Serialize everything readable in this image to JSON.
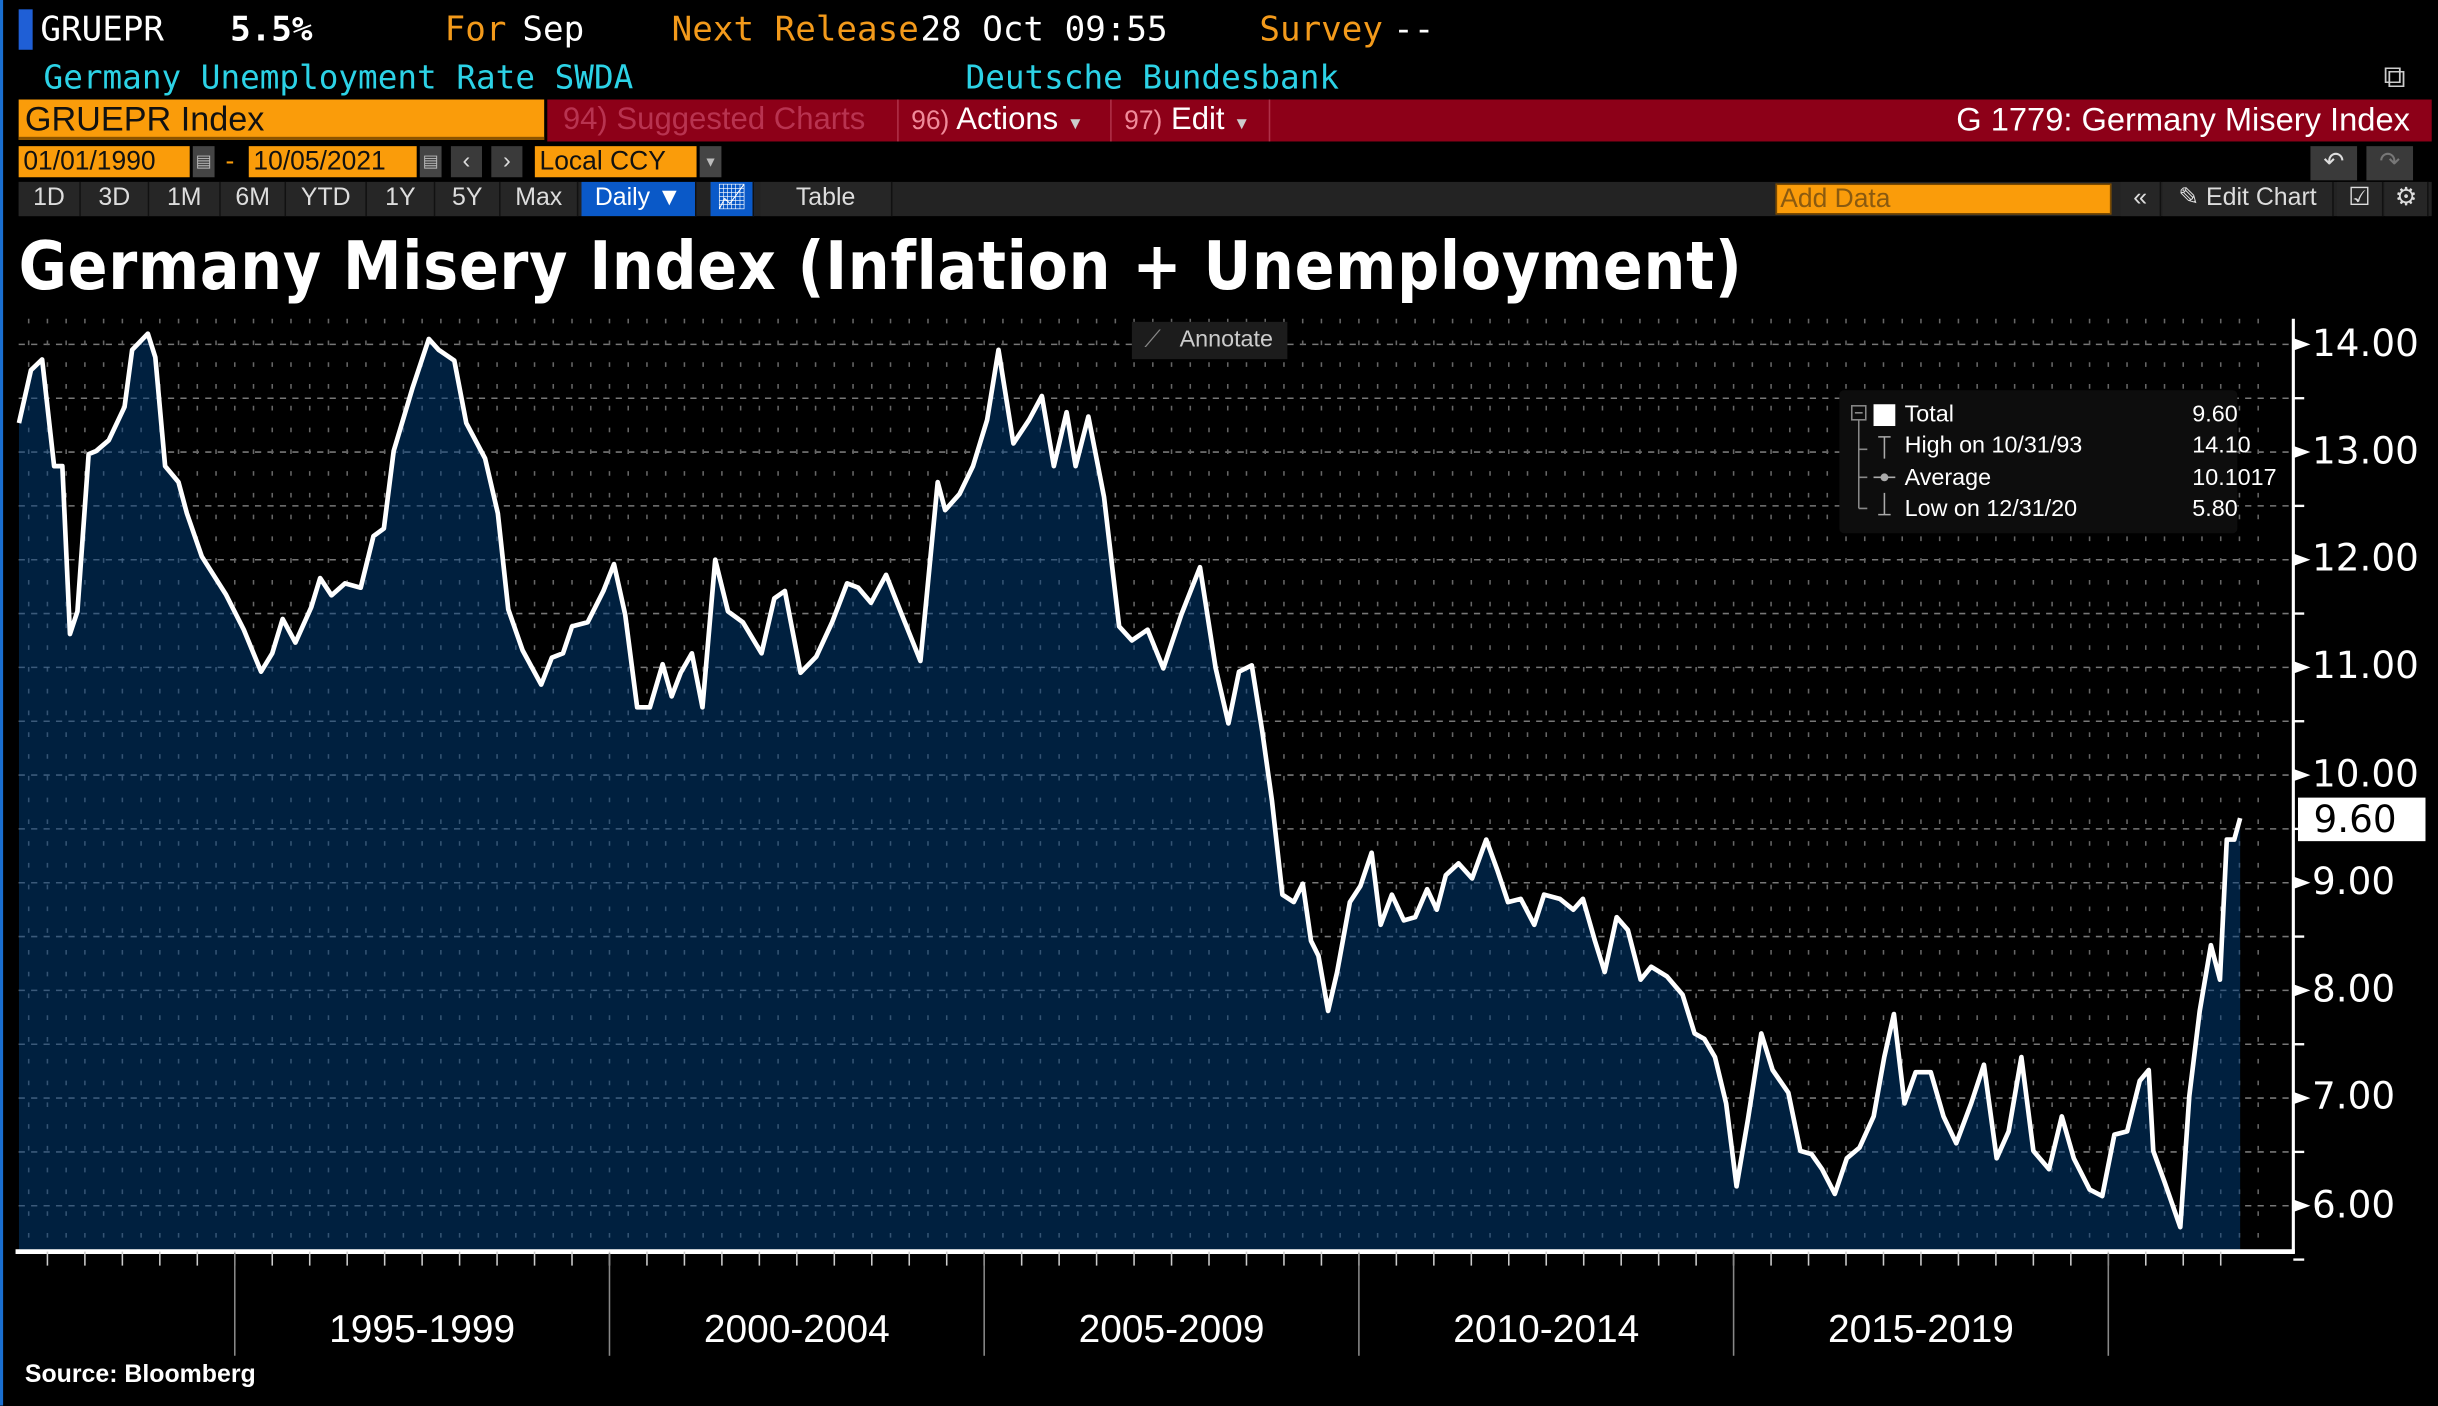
{
  "header": {
    "ticker": "GRUEPR",
    "last_value": "5.5%",
    "for_label": "For",
    "for_period": "Sep",
    "next_release_label": "Next Release",
    "next_release_value": "28 Oct 09:55",
    "survey_label": "Survey",
    "survey_value": "--",
    "description": "Germany Unemployment Rate SWDA",
    "source_name": "Deutsche Bundesbank"
  },
  "command_bar": {
    "security": "GRUEPR Index",
    "suggested_num": "94)",
    "suggested_label": "Suggested Charts",
    "actions_num": "96)",
    "actions_label": "Actions",
    "edit_num": "97)",
    "edit_label": "Edit",
    "chart_id": "G 1779: Germany Misery Index"
  },
  "date_bar": {
    "start_date": "01/01/1990",
    "separator": "-",
    "end_date": "10/05/2021",
    "currency": "Local CCY"
  },
  "toolbar": {
    "ranges": [
      "1D",
      "3D",
      "1M",
      "6M",
      "YTD",
      "1Y",
      "5Y",
      "Max"
    ],
    "frequency": "Daily ▼",
    "table_label": "Table",
    "add_data_placeholder": "Add Data",
    "edit_chart_label": "Edit Chart"
  },
  "annotate_label": "Annotate",
  "legend": {
    "total_label": "Total",
    "total_value": "9.60",
    "high_label": "High on 10/31/93",
    "high_value": "14.10",
    "avg_label": "Average",
    "avg_value": "10.1017",
    "low_label": "Low on 12/31/20",
    "low_value": "5.80"
  },
  "colors": {
    "line": "#ffffff",
    "area": "#00203f",
    "accent_orange": "#fa9c0a",
    "command_red": "#8d0018",
    "cyan_text": "#2cd2e6"
  },
  "footer": {
    "source": "Source: Bloomberg"
  },
  "chart_data": {
    "type": "area",
    "title": "Germany Misery Index (Inflation + Unemployment)",
    "series": [
      {
        "name": "Total",
        "last": 9.6
      }
    ],
    "x_unit": "decimal year",
    "x": [
      1992.12,
      1992.28,
      1992.43,
      1992.59,
      1992.7,
      1992.8,
      1992.9,
      1993.05,
      1993.15,
      1993.32,
      1993.53,
      1993.63,
      1993.84,
      1993.94,
      1994.07,
      1994.25,
      1994.36,
      1994.56,
      1994.88,
      1995.12,
      1995.35,
      1995.5,
      1995.64,
      1995.81,
      1996.02,
      1996.14,
      1996.29,
      1996.47,
      1996.68,
      1996.85,
      1996.99,
      1997.12,
      1997.37,
      1997.59,
      1997.72,
      1997.93,
      1998.09,
      1998.34,
      1998.51,
      1998.65,
      1998.84,
      1999.09,
      1999.23,
      1999.38,
      1999.5,
      1999.71,
      1999.92,
      2000.06,
      2000.21,
      2000.37,
      2000.54,
      2000.71,
      2000.83,
      2000.95,
      2001.1,
      2001.24,
      2001.41,
      2001.58,
      2001.78,
      2002.03,
      2002.2,
      2002.34,
      2002.55,
      2002.76,
      2002.97,
      2003.17,
      2003.32,
      2003.49,
      2003.69,
      2003.9,
      2004.15,
      2004.38,
      2004.48,
      2004.67,
      2004.85,
      2005.04,
      2005.19,
      2005.39,
      2005.6,
      2005.77,
      2005.93,
      2006.1,
      2006.22,
      2006.39,
      2006.6,
      2006.8,
      2006.97,
      2007.18,
      2007.39,
      2007.63,
      2007.88,
      2008.09,
      2008.26,
      2008.4,
      2008.57,
      2008.71,
      2008.84,
      2008.98,
      2009.13,
      2009.25,
      2009.36,
      2009.46,
      2009.59,
      2009.71,
      2009.88,
      2010.02,
      2010.17,
      2010.29,
      2010.44,
      2010.6,
      2010.75,
      2010.91,
      2011.04,
      2011.16,
      2011.33,
      2011.51,
      2011.7,
      2011.85,
      2011.99,
      2012.16,
      2012.34,
      2012.47,
      2012.68,
      2012.86,
      2012.99,
      2013.15,
      2013.28,
      2013.44,
      2013.59,
      2013.76,
      2013.9,
      2014.11,
      2014.32,
      2014.48,
      2014.61,
      2014.75,
      2014.9,
      2015.04,
      2015.19,
      2015.37,
      2015.52,
      2015.73,
      2015.89,
      2016.04,
      2016.18,
      2016.35,
      2016.51,
      2016.68,
      2016.87,
      2017.01,
      2017.14,
      2017.28,
      2017.43,
      2017.63,
      2017.8,
      2017.97,
      2018.17,
      2018.34,
      2018.51,
      2018.67,
      2018.84,
      2019.0,
      2019.21,
      2019.38,
      2019.54,
      2019.75,
      2019.92,
      2020.08,
      2020.25,
      2020.42,
      2020.54,
      2020.6,
      2020.75,
      2020.96,
      2021.08,
      2021.22,
      2021.37,
      2021.49,
      2021.58,
      2021.68,
      2021.76
    ],
    "values": [
      13.27,
      13.76,
      13.86,
      12.87,
      12.87,
      11.31,
      11.52,
      12.98,
      13.01,
      13.11,
      13.42,
      13.95,
      14.1,
      13.88,
      12.87,
      12.72,
      12.43,
      12.03,
      11.68,
      11.35,
      10.96,
      11.13,
      11.45,
      11.23,
      11.56,
      11.83,
      11.67,
      11.78,
      11.74,
      12.22,
      12.29,
      13.01,
      13.59,
      14.05,
      13.95,
      13.85,
      13.27,
      12.94,
      12.43,
      11.54,
      11.16,
      10.84,
      11.09,
      11.13,
      11.38,
      11.42,
      11.71,
      11.96,
      11.49,
      10.63,
      10.63,
      11.03,
      10.73,
      10.95,
      11.13,
      10.63,
      12.0,
      11.52,
      11.42,
      11.13,
      11.64,
      11.71,
      10.95,
      11.1,
      11.42,
      11.78,
      11.74,
      11.6,
      11.86,
      11.49,
      11.06,
      12.72,
      12.46,
      12.61,
      12.87,
      13.3,
      13.95,
      13.08,
      13.3,
      13.52,
      12.87,
      13.37,
      12.87,
      13.33,
      12.58,
      11.38,
      11.25,
      11.35,
      10.99,
      11.49,
      11.93,
      10.99,
      10.48,
      10.96,
      11.02,
      10.41,
      9.76,
      8.89,
      8.82,
      8.99,
      8.46,
      8.32,
      7.81,
      8.17,
      8.82,
      8.97,
      9.28,
      8.61,
      8.89,
      8.65,
      8.68,
      8.94,
      8.75,
      9.07,
      9.18,
      9.04,
      9.4,
      9.11,
      8.82,
      8.85,
      8.61,
      8.89,
      8.85,
      8.75,
      8.85,
      8.46,
      8.17,
      8.68,
      8.56,
      8.1,
      8.22,
      8.13,
      7.96,
      7.6,
      7.55,
      7.38,
      6.95,
      6.18,
      6.8,
      7.6,
      7.26,
      7.05,
      6.51,
      6.48,
      6.34,
      6.11,
      6.44,
      6.54,
      6.83,
      7.38,
      7.78,
      6.95,
      7.24,
      7.24,
      6.83,
      6.58,
      6.95,
      7.31,
      6.44,
      6.69,
      7.38,
      6.51,
      6.34,
      6.83,
      6.44,
      6.15,
      6.09,
      6.66,
      6.69,
      7.16,
      7.26,
      6.51,
      6.22,
      5.8,
      7.02,
      7.81,
      8.42,
      8.1,
      9.4,
      9.4,
      9.6
    ],
    "xlim": [
      1992.1,
      2021.8
    ],
    "ylim": [
      5.8,
      14.2
    ],
    "y_ticks": [
      "14.00",
      "13.00",
      "12.00",
      "11.00",
      "10.00",
      "9.00",
      "8.00",
      "7.00",
      "6.00"
    ],
    "x_period_labels": [
      "1995-1999",
      "2000-2004",
      "2005-2009",
      "2010-2014",
      "2015-2019"
    ],
    "last_value_label": "9.60",
    "grid": true,
    "legend_position": "top-right"
  }
}
